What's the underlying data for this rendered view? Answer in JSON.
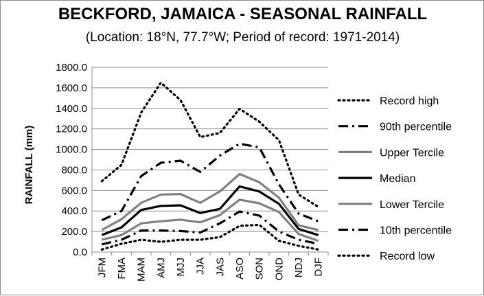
{
  "chart_data": {
    "type": "line",
    "title": "BECKFORD, JAMAICA - SEASONAL RAINFALL",
    "subtitle": "(Location: 18°N, 77.7°W; Period of record: 1971-2014)",
    "xlabel": "",
    "ylabel": "RAINFALL (mm)",
    "ylim": [
      0,
      1800
    ],
    "yticks": [
      "0.0",
      "200.0",
      "400.0",
      "600.0",
      "800.0",
      "1000.0",
      "1200.0",
      "1400.0",
      "1600.0",
      "1800.0"
    ],
    "grid": "horizontal",
    "legend_position": "right",
    "categories": [
      "JFM",
      "FMA",
      "MAM",
      "AMJ",
      "MJJ",
      "JJA",
      "JAS",
      "ASO",
      "SON",
      "OND",
      "NDJ",
      "DJF"
    ],
    "series": [
      {
        "name": "Record high",
        "color": "#000000",
        "style": "dotted",
        "values": [
          690,
          850,
          1360,
          1650,
          1480,
          1120,
          1160,
          1395,
          1270,
          1090,
          560,
          440
        ]
      },
      {
        "name": "90th percentile",
        "color": "#000000",
        "style": "dashdot",
        "values": [
          310,
          400,
          740,
          870,
          890,
          780,
          940,
          1055,
          1020,
          660,
          375,
          300
        ]
      },
      {
        "name": "Upper Tercile",
        "color": "#808080",
        "style": "solid",
        "values": [
          215,
          320,
          480,
          560,
          565,
          480,
          590,
          760,
          680,
          530,
          260,
          215
        ]
      },
      {
        "name": "Median",
        "color": "#000000",
        "style": "solid",
        "values": [
          165,
          240,
          410,
          450,
          455,
          380,
          420,
          640,
          590,
          470,
          225,
          165
        ]
      },
      {
        "name": "Lower Tercile",
        "color": "#808080",
        "style": "solid",
        "values": [
          120,
          165,
          280,
          300,
          315,
          290,
          360,
          510,
          475,
          390,
          175,
          110
        ]
      },
      {
        "name": "10th percentile",
        "color": "#000000",
        "style": "dashdot",
        "values": [
          75,
          120,
          210,
          210,
          205,
          190,
          280,
          395,
          355,
          200,
          120,
          80
        ]
      },
      {
        "name": "Record low",
        "color": "#000000",
        "style": "dotted",
        "values": [
          25,
          80,
          120,
          100,
          120,
          120,
          145,
          255,
          265,
          110,
          60,
          25
        ]
      }
    ]
  }
}
